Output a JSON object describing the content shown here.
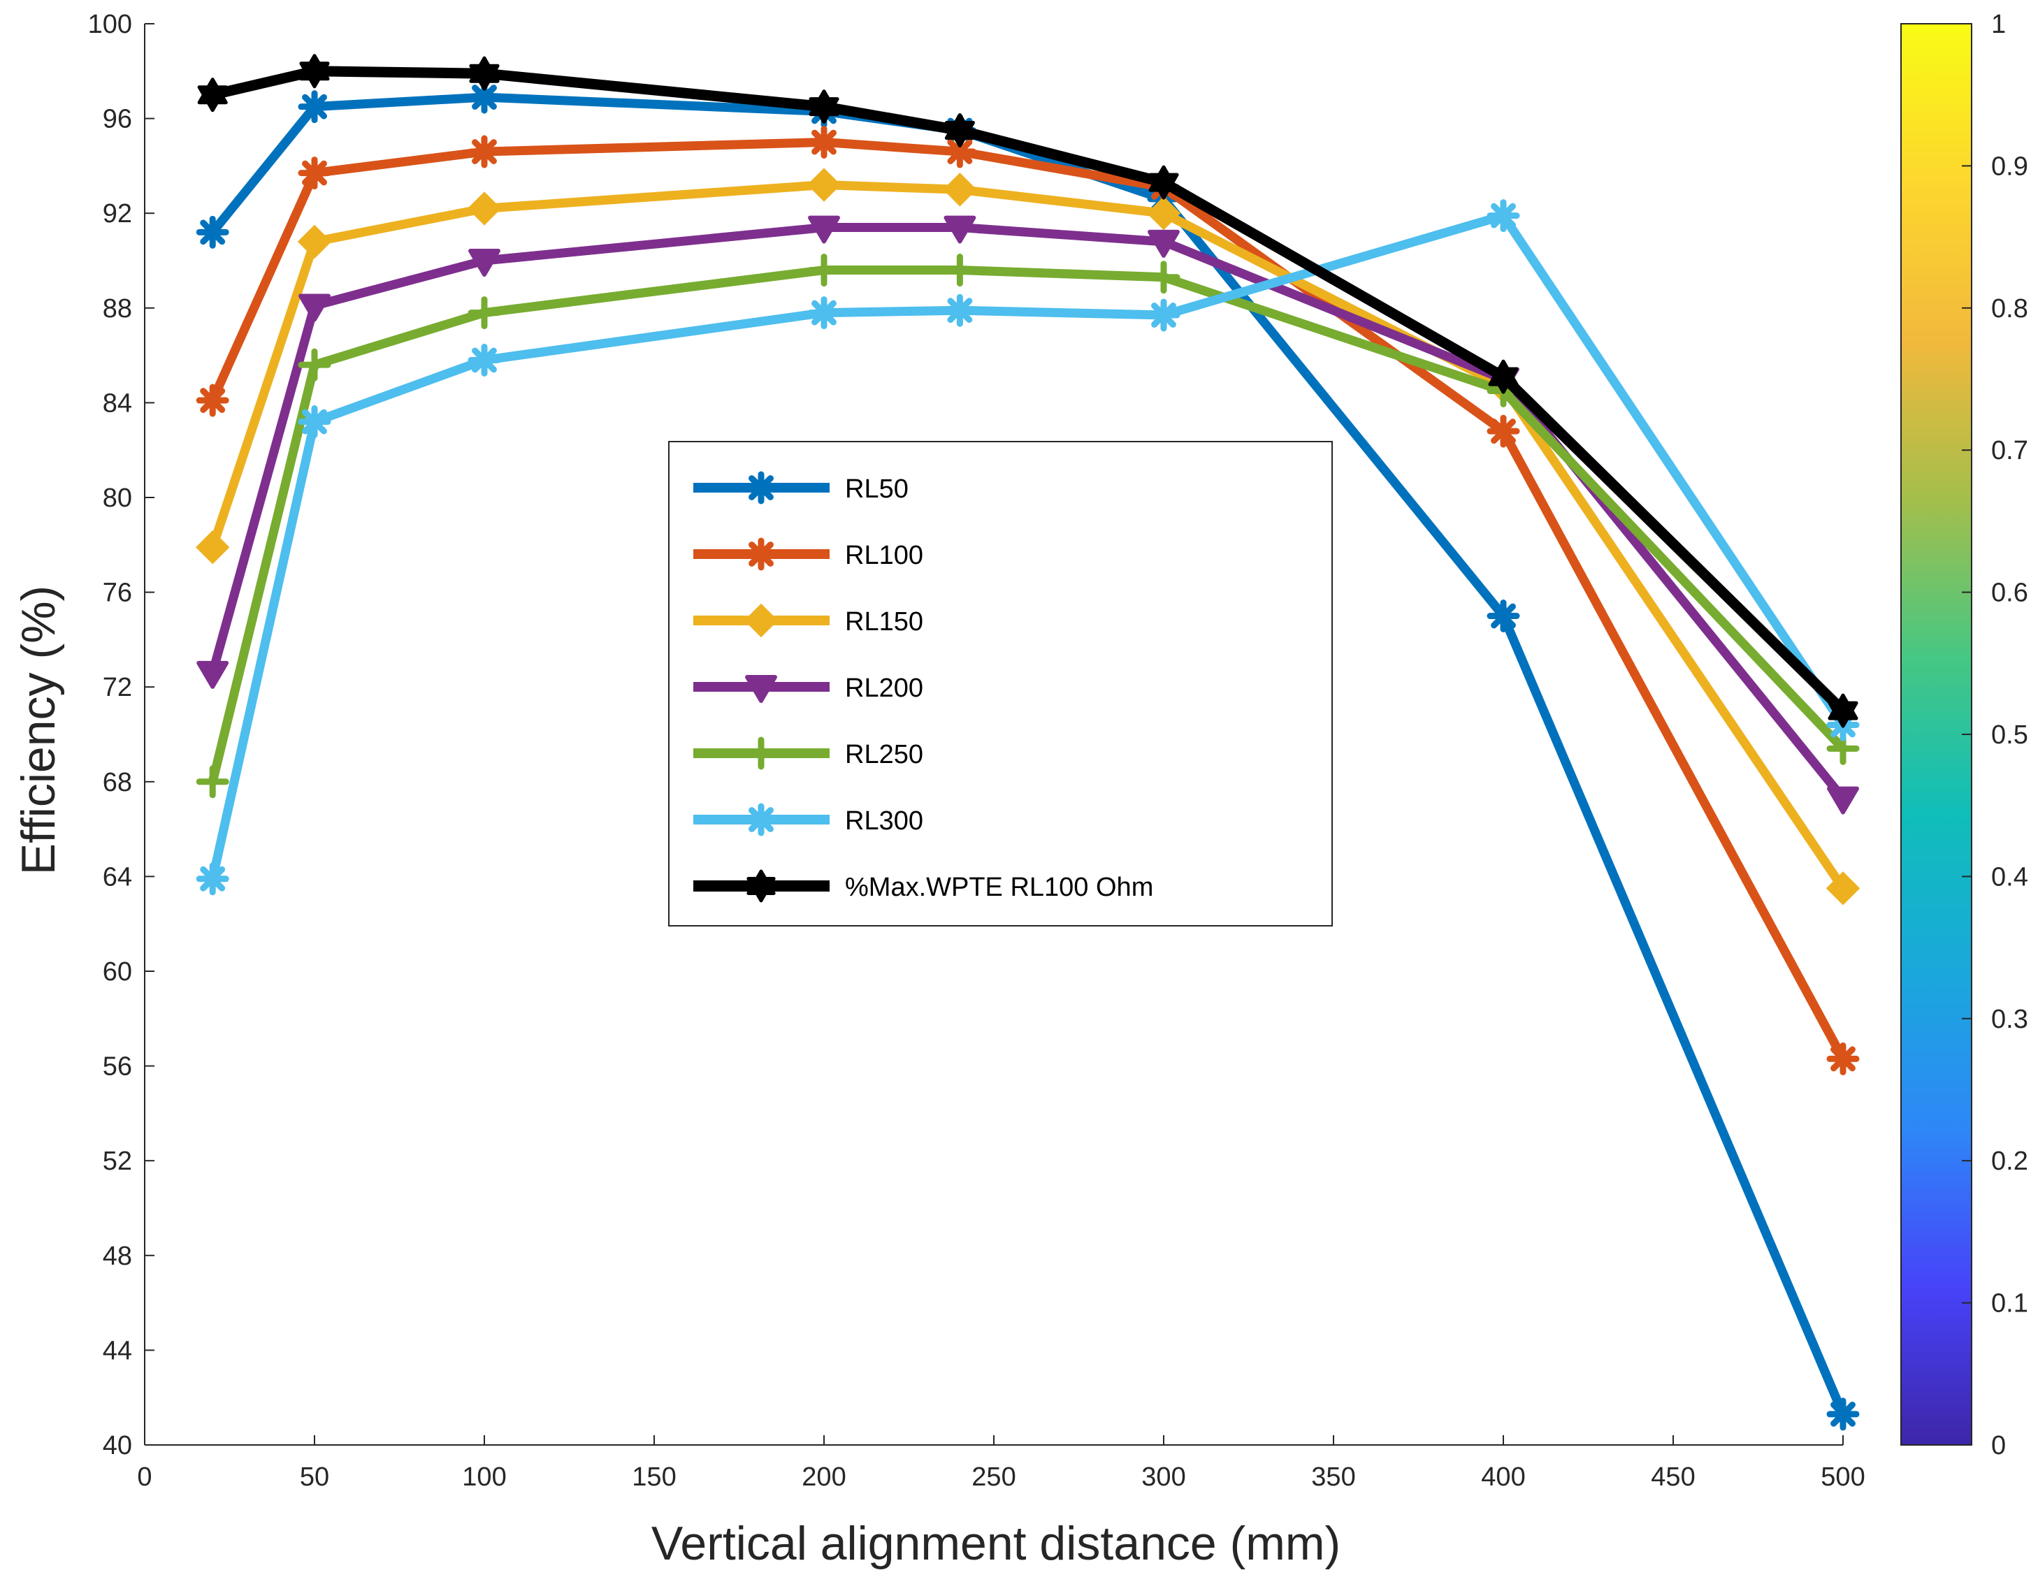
{
  "chart_data": {
    "type": "line",
    "title": "",
    "xlabel": "Vertical alignment distance (mm)",
    "ylabel": "Efficiency (%)",
    "xlim": [
      0,
      500
    ],
    "ylim": [
      40,
      100
    ],
    "xticks": [
      "0",
      "50",
      "100",
      "150",
      "200",
      "250",
      "300",
      "350",
      "400",
      "450",
      "500"
    ],
    "yticks": [
      "40",
      "44",
      "48",
      "52",
      "56",
      "60",
      "64",
      "68",
      "72",
      "76",
      "80",
      "84",
      "88",
      "92",
      "96",
      "100"
    ],
    "x": [
      20,
      50,
      100,
      200,
      240,
      300,
      400,
      500
    ],
    "legend_position": "center",
    "series": [
      {
        "name": "RL50",
        "color": "#0072BD",
        "marker": "asterisk",
        "values": [
          91.2,
          96.5,
          96.9,
          96.3,
          95.5,
          92.6,
          75.0,
          41.3
        ]
      },
      {
        "name": "RL100",
        "color": "#D95319",
        "marker": "asterisk",
        "values": [
          84.1,
          93.7,
          94.6,
          95.0,
          94.6,
          93.1,
          82.8,
          56.3
        ]
      },
      {
        "name": "RL150",
        "color": "#EDB120",
        "marker": "diamond",
        "values": [
          77.9,
          90.8,
          92.2,
          93.2,
          93.0,
          92.0,
          84.7,
          63.5
        ]
      },
      {
        "name": "RL200",
        "color": "#7E2F8E",
        "marker": "triangle-down",
        "values": [
          72.6,
          88.1,
          90.0,
          91.4,
          91.4,
          90.8,
          85.0,
          67.3
        ]
      },
      {
        "name": "RL250",
        "color": "#77AC30",
        "marker": "plus",
        "values": [
          68.0,
          85.6,
          87.8,
          89.6,
          89.6,
          89.3,
          84.5,
          69.4
        ]
      },
      {
        "name": "RL300",
        "color": "#4DBEEE",
        "marker": "asterisk",
        "values": [
          63.9,
          83.2,
          85.8,
          87.8,
          87.9,
          87.7,
          91.9,
          70.4
        ]
      },
      {
        "name": "%Max.WPTE RL100 Ohm",
        "color": "#000000",
        "marker": "hexagram",
        "values": [
          97.0,
          98.0,
          97.9,
          96.5,
          95.5,
          93.3,
          85.1,
          71.0
        ]
      }
    ],
    "colorbar": {
      "ticks": [
        "0",
        "0.1",
        "0.2",
        "0.3",
        "0.4",
        "0.5",
        "0.6",
        "0.7",
        "0.8",
        "0.9",
        "1"
      ],
      "range": [
        0,
        1
      ],
      "colormap": [
        "#3E26A8",
        "#4743F9",
        "#2E87F7",
        "#1AA8DB",
        "#10BEB9",
        "#47C782",
        "#A5BE4B",
        "#F2B93C",
        "#FDD72E",
        "#F9FB15"
      ]
    }
  }
}
